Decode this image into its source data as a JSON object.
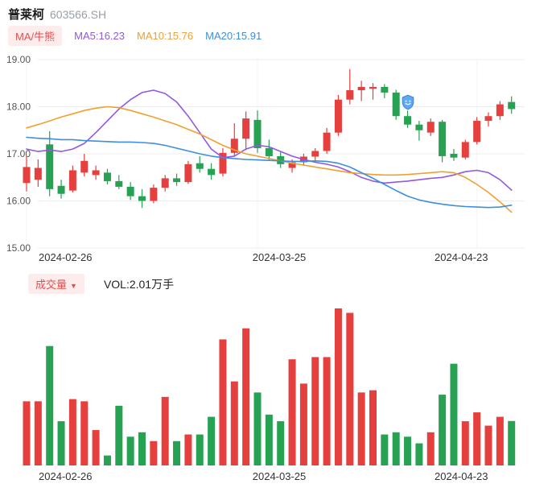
{
  "header": {
    "title": "普莱柯",
    "code": "603566.SH"
  },
  "toolbar": {
    "ma_toggle": "MA/牛熊",
    "ma5": {
      "label": "MA5:16.23",
      "color": "#9158e2"
    },
    "ma10": {
      "label": "MA10:15.76",
      "color": "#f0a030"
    },
    "ma20": {
      "label": "MA20:15.91",
      "color": "#3d8fdd"
    }
  },
  "volume_header": {
    "badge": "成交量",
    "dropdown_icon": "▼",
    "vol_text": "VOL:2.01万手"
  },
  "x_axis_labels": [
    "2024-02-26",
    "2024-03-25",
    "2024-04-23"
  ],
  "colors": {
    "up": "#e6403e",
    "down": "#27a253",
    "grid": "#ededed",
    "grid_vertical": "#f4f4f4",
    "axis_text": "#555555",
    "date_text": "#333333",
    "badge_bg": "#fdecec",
    "badge_text": "#e05050",
    "marker_fill": "#5fa8f5",
    "marker_stroke": "#3c7fd0"
  },
  "chart_data": {
    "type": "candlestick",
    "title": "普莱柯 603566.SH 日K线与成交量",
    "legend_position": "top",
    "grid": true,
    "y_axis": {
      "ticks": [
        19.0,
        18.0,
        17.0,
        16.0,
        15.0
      ],
      "range": [
        15.0,
        19.0
      ]
    },
    "volume_unit": "万手",
    "latest_volume": 2.01,
    "dates": [
      "2024-02-26",
      "2024-02-27",
      "2024-02-28",
      "2024-02-29",
      "2024-03-01",
      "2024-03-04",
      "2024-03-05",
      "2024-03-06",
      "2024-03-07",
      "2024-03-08",
      "2024-03-11",
      "2024-03-12",
      "2024-03-13",
      "2024-03-14",
      "2024-03-15",
      "2024-03-18",
      "2024-03-19",
      "2024-03-20",
      "2024-03-21",
      "2024-03-22",
      "2024-03-25",
      "2024-03-26",
      "2024-03-27",
      "2024-03-28",
      "2024-03-29",
      "2024-04-01",
      "2024-04-02",
      "2024-04-03",
      "2024-04-08",
      "2024-04-09",
      "2024-04-10",
      "2024-04-11",
      "2024-04-12",
      "2024-04-15",
      "2024-04-16",
      "2024-04-17",
      "2024-04-18",
      "2024-04-19",
      "2024-04-22",
      "2024-04-23",
      "2024-04-24",
      "2024-04-25",
      "2024-04-26"
    ],
    "ohlc": [
      [
        16.38,
        16.95,
        16.2,
        16.72
      ],
      [
        16.45,
        16.88,
        16.3,
        16.7
      ],
      [
        17.2,
        17.48,
        16.1,
        16.25
      ],
      [
        16.32,
        16.45,
        16.05,
        16.15
      ],
      [
        16.22,
        16.75,
        16.18,
        16.65
      ],
      [
        16.6,
        17.0,
        16.52,
        16.85
      ],
      [
        16.55,
        16.75,
        16.45,
        16.65
      ],
      [
        16.6,
        16.68,
        16.35,
        16.42
      ],
      [
        16.42,
        16.55,
        16.25,
        16.3
      ],
      [
        16.3,
        16.4,
        16.02,
        16.1
      ],
      [
        16.1,
        16.25,
        15.85,
        16.0
      ],
      [
        16.0,
        16.35,
        15.95,
        16.28
      ],
      [
        16.28,
        16.55,
        16.2,
        16.48
      ],
      [
        16.48,
        16.58,
        16.32,
        16.4
      ],
      [
        16.4,
        16.85,
        16.36,
        16.78
      ],
      [
        16.8,
        16.95,
        16.6,
        16.68
      ],
      [
        16.68,
        16.8,
        16.45,
        16.55
      ],
      [
        16.58,
        17.12,
        16.52,
        17.02
      ],
      [
        17.02,
        17.65,
        16.95,
        17.32
      ],
      [
        17.32,
        17.9,
        17.08,
        17.75
      ],
      [
        17.72,
        17.92,
        17.02,
        17.12
      ],
      [
        17.12,
        17.3,
        16.85,
        16.95
      ],
      [
        16.95,
        17.05,
        16.7,
        16.78
      ],
      [
        16.7,
        16.88,
        16.6,
        16.82
      ],
      [
        16.82,
        17.0,
        16.74,
        16.94
      ],
      [
        16.94,
        17.12,
        16.85,
        17.06
      ],
      [
        17.06,
        17.55,
        17.0,
        17.45
      ],
      [
        17.45,
        18.25,
        17.38,
        18.15
      ],
      [
        18.15,
        18.8,
        18.05,
        18.35
      ],
      [
        18.35,
        18.55,
        18.12,
        18.42
      ],
      [
        18.38,
        18.5,
        18.15,
        18.42
      ],
      [
        18.42,
        18.48,
        18.18,
        18.3
      ],
      [
        18.3,
        18.36,
        17.72,
        17.8
      ],
      [
        17.8,
        17.92,
        17.55,
        17.62
      ],
      [
        17.62,
        17.7,
        17.28,
        17.5
      ],
      [
        17.45,
        17.75,
        17.38,
        17.68
      ],
      [
        17.68,
        17.72,
        16.82,
        16.95
      ],
      [
        17.0,
        17.1,
        16.85,
        16.92
      ],
      [
        16.92,
        17.3,
        16.88,
        17.25
      ],
      [
        17.25,
        17.78,
        17.2,
        17.7
      ],
      [
        17.7,
        17.88,
        17.58,
        17.8
      ],
      [
        17.8,
        18.12,
        17.72,
        18.05
      ],
      [
        18.1,
        18.22,
        17.85,
        17.95
      ]
    ],
    "volumes_wan_shou": [
      2.9,
      2.9,
      5.4,
      2.0,
      3.0,
      2.9,
      1.6,
      0.45,
      2.7,
      1.3,
      1.5,
      1.1,
      3.1,
      1.1,
      1.4,
      1.4,
      2.2,
      5.7,
      3.8,
      6.2,
      3.3,
      2.3,
      2.0,
      4.8,
      3.7,
      4.9,
      4.9,
      7.1,
      6.9,
      3.3,
      3.4,
      1.4,
      1.5,
      1.3,
      1.0,
      1.5,
      3.2,
      4.6,
      2.0,
      2.4,
      1.8,
      2.2,
      2.01
    ],
    "ma_series": [
      {
        "name": "MA5",
        "color": "#9158e2",
        "last_value": 16.23,
        "values": [
          17.1,
          17.05,
          17.08,
          17.05,
          17.1,
          17.22,
          17.45,
          17.7,
          17.95,
          18.15,
          18.3,
          18.35,
          18.28,
          18.1,
          17.8,
          17.45,
          17.1,
          16.92,
          16.95,
          17.1,
          17.18,
          17.15,
          17.05,
          16.95,
          16.88,
          16.82,
          16.78,
          16.72,
          16.62,
          16.5,
          16.42,
          16.38,
          16.4,
          16.42,
          16.45,
          16.48,
          16.5,
          16.55,
          16.62,
          16.65,
          16.6,
          16.45,
          16.23
        ]
      },
      {
        "name": "MA10",
        "color": "#f0a030",
        "last_value": 15.76,
        "values": [
          17.55,
          17.62,
          17.7,
          17.78,
          17.85,
          17.92,
          17.97,
          18.0,
          17.98,
          17.92,
          17.85,
          17.78,
          17.7,
          17.62,
          17.52,
          17.42,
          17.3,
          17.18,
          17.08,
          17.0,
          16.95,
          16.9,
          16.85,
          16.8,
          16.76,
          16.72,
          16.68,
          16.64,
          16.6,
          16.58,
          16.56,
          16.55,
          16.55,
          16.56,
          16.58,
          16.6,
          16.62,
          16.6,
          16.5,
          16.35,
          16.18,
          15.98,
          15.76
        ]
      },
      {
        "name": "MA20",
        "color": "#3d8fdd",
        "last_value": 15.91,
        "values": [
          17.35,
          17.33,
          17.32,
          17.3,
          17.3,
          17.28,
          17.27,
          17.26,
          17.25,
          17.25,
          17.24,
          17.22,
          17.18,
          17.12,
          17.06,
          17.0,
          16.95,
          16.92,
          16.9,
          16.88,
          16.87,
          16.86,
          16.85,
          16.84,
          16.84,
          16.85,
          16.84,
          16.8,
          16.72,
          16.6,
          16.48,
          16.35,
          16.22,
          16.1,
          16.02,
          15.97,
          15.93,
          15.9,
          15.88,
          15.87,
          15.86,
          15.87,
          15.91
        ]
      }
    ],
    "marker": {
      "date": "2024-04-15",
      "price": 18.1,
      "icon": "shield"
    }
  }
}
